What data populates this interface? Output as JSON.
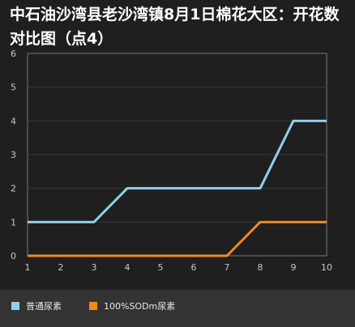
{
  "title": "中石油沙湾县老沙湾镇8月1日棉花大区：开花数对比图（点4）",
  "colors": {
    "background": "#1f1f1f",
    "legend_background": "#333333",
    "grid": "#3a3a3a",
    "axis": "#7a7a7a",
    "tick_text": "#c8c8c8"
  },
  "chart_data": {
    "type": "line",
    "title": "中石油沙湾县老沙湾镇8月1日棉花大区：开花数对比图（点4）",
    "xlabel": "",
    "ylabel": "",
    "x": [
      1,
      2,
      3,
      4,
      5,
      6,
      7,
      8,
      9,
      10
    ],
    "xlim": [
      1,
      10
    ],
    "ylim": [
      0,
      6
    ],
    "yticks": [
      0,
      1,
      2,
      3,
      4,
      5,
      6
    ],
    "grid": true,
    "legend_position": "bottom",
    "series": [
      {
        "name": "普通尿素",
        "color": "#8fd0ec",
        "values": [
          1,
          1,
          1,
          2,
          2,
          2,
          2,
          2,
          4,
          4
        ]
      },
      {
        "name": "100%SODm尿素",
        "color": "#f08a1c",
        "values": [
          0,
          0,
          0,
          0,
          0,
          0,
          0,
          1,
          1,
          1
        ]
      }
    ]
  }
}
